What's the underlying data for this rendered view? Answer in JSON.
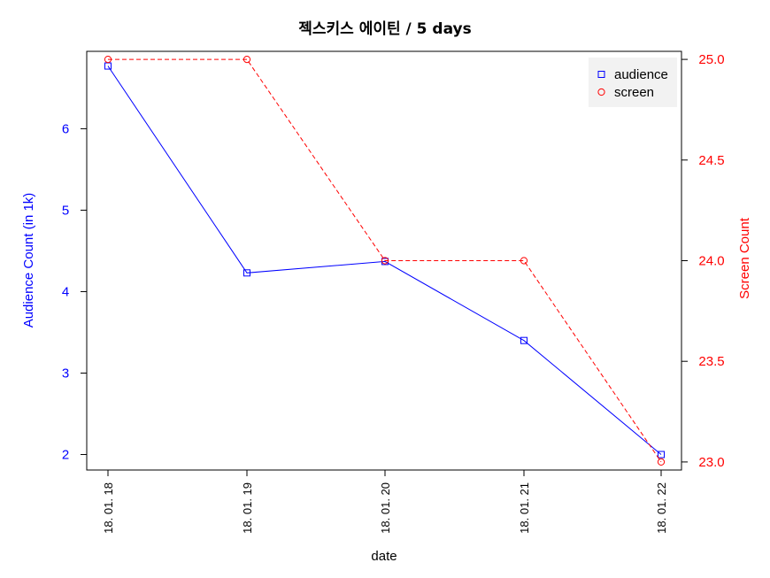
{
  "chart_data": {
    "type": "line",
    "title": "젝스키스 에이틴 / 5 days",
    "xlabel": "date",
    "categories": [
      "18. 01. 18",
      "18. 01. 19",
      "18. 01. 20",
      "18. 01. 21",
      "18. 01. 22"
    ],
    "y_left": {
      "label": "Audience Count (in 1k)",
      "color": "#0000ff",
      "ticks": [
        2,
        3,
        4,
        5,
        6
      ],
      "range": [
        1.81,
        6.95
      ]
    },
    "y_right": {
      "label": "Screen Count",
      "color": "#ff0000",
      "ticks": [
        "23.0",
        "23.5",
        "24.0",
        "24.5",
        "25.0"
      ],
      "range": [
        22.96,
        25.04
      ]
    },
    "series": [
      {
        "name": "audience",
        "axis": "left",
        "color": "#0000ff",
        "line": "solid",
        "marker": "square",
        "values": [
          6.77,
          4.23,
          4.37,
          3.4,
          2.0
        ]
      },
      {
        "name": "screen",
        "axis": "right",
        "color": "#ff0000",
        "line": "dashed",
        "marker": "circle",
        "values": [
          25,
          25,
          24,
          24,
          23
        ]
      }
    ],
    "legend": {
      "position": "top-right"
    },
    "grid": false
  }
}
